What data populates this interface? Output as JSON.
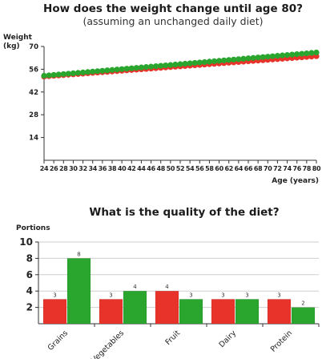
{
  "colors": {
    "series_a": "#e8332a",
    "series_b": "#2aa52e",
    "gridline": "#cfcfcf",
    "axis": "#333333"
  },
  "chart_data": [
    {
      "type": "line",
      "title": "How does the weight change until age 80?",
      "subtitle": "(assuming an unchanged daily diet)",
      "ylabel": "Weight\n(kg)",
      "xlabel": "Age (years)",
      "ylim": [
        0,
        70
      ],
      "yticks": [
        14,
        28,
        42,
        56,
        70
      ],
      "xlim": [
        24,
        80
      ],
      "xticks": [
        24,
        26,
        28,
        30,
        32,
        34,
        36,
        38,
        40,
        42,
        44,
        46,
        48,
        50,
        52,
        54,
        56,
        58,
        60,
        62,
        64,
        66,
        68,
        70,
        72,
        74,
        76,
        78,
        80
      ],
      "grid": false,
      "series": [
        {
          "color": "#e8332a",
          "x_start": 24,
          "x_end": 80,
          "y_start": 51.5,
          "y_end": 64.0
        },
        {
          "color": "#2aa52e",
          "x_start": 24,
          "x_end": 80,
          "y_start": 52.0,
          "y_end": 66.3
        }
      ]
    },
    {
      "type": "bar",
      "title": "What is the quality of the diet?",
      "ylabel": "Portions",
      "ylim": [
        0,
        10
      ],
      "yticks": [
        2,
        4,
        6,
        8,
        10
      ],
      "grid": true,
      "categories": [
        "Grains",
        "Vegetables",
        "Fruit",
        "Dairy",
        "Protein"
      ],
      "series": [
        {
          "color": "#e8332a",
          "values": [
            3,
            3,
            4,
            3,
            3
          ]
        },
        {
          "color": "#2aa52e",
          "values": [
            8,
            4,
            3,
            3,
            2
          ]
        }
      ]
    }
  ]
}
